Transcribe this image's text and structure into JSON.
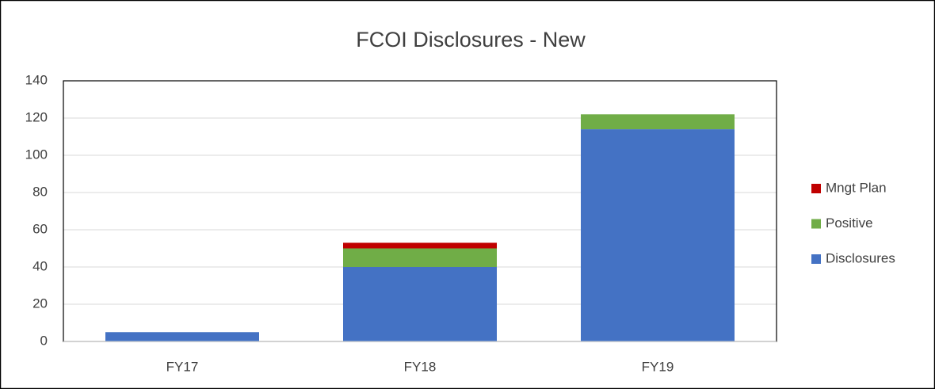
{
  "chart_data": {
    "type": "stacked_bar",
    "title": "FCOI Disclosures - New",
    "categories": [
      "FY17",
      "FY18",
      "FY19"
    ],
    "series": [
      {
        "name": "Disclosures",
        "color": "#4472c4",
        "values": [
          5,
          40,
          114
        ]
      },
      {
        "name": "Positive",
        "color": "#70ad47",
        "values": [
          0,
          10,
          8
        ]
      },
      {
        "name": "Mngt Plan",
        "color": "#c00000",
        "values": [
          0,
          3,
          0
        ]
      }
    ],
    "ylim": [
      0,
      140
    ],
    "yticks": [
      0,
      20,
      40,
      60,
      80,
      100,
      120,
      140
    ],
    "grid": true,
    "legend": "right"
  }
}
